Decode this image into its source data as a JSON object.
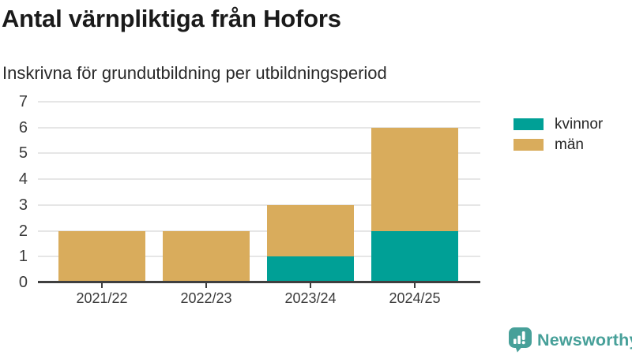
{
  "header": {
    "title": "Antal värnpliktiga från Hofors",
    "subtitle": "Inskrivna för grundutbildning per utbildningsperiod"
  },
  "chart_data": {
    "type": "bar",
    "stacked": true,
    "title": "Antal värnpliktiga från Hofors",
    "subtitle": "Inskrivna för grundutbildning per utbildningsperiod",
    "categories": [
      "2021/22",
      "2022/23",
      "2023/24",
      "2024/25"
    ],
    "series": [
      {
        "name": "kvinnor",
        "color": "#00A096",
        "values": [
          0,
          0,
          1,
          2
        ]
      },
      {
        "name": "män",
        "color": "#D9AC5C",
        "values": [
          2,
          2,
          2,
          4
        ]
      }
    ],
    "totals": [
      2,
      2,
      3,
      6
    ],
    "xlabel": "",
    "ylabel": "",
    "ylim": [
      0,
      7
    ],
    "yticks": [
      0,
      1,
      2,
      3,
      4,
      5,
      6,
      7
    ],
    "grid": true,
    "legend_position": "right"
  },
  "colors": {
    "grid": "#E6E6E6",
    "axis_line": "#3F3F3F",
    "title_text": "#1A1A1A",
    "subtitle_text": "#2A2A2A",
    "tick_text": "#3A3A3A",
    "brand_teal": "#47A099"
  },
  "footer": {
    "brand": "Newsworthy"
  }
}
